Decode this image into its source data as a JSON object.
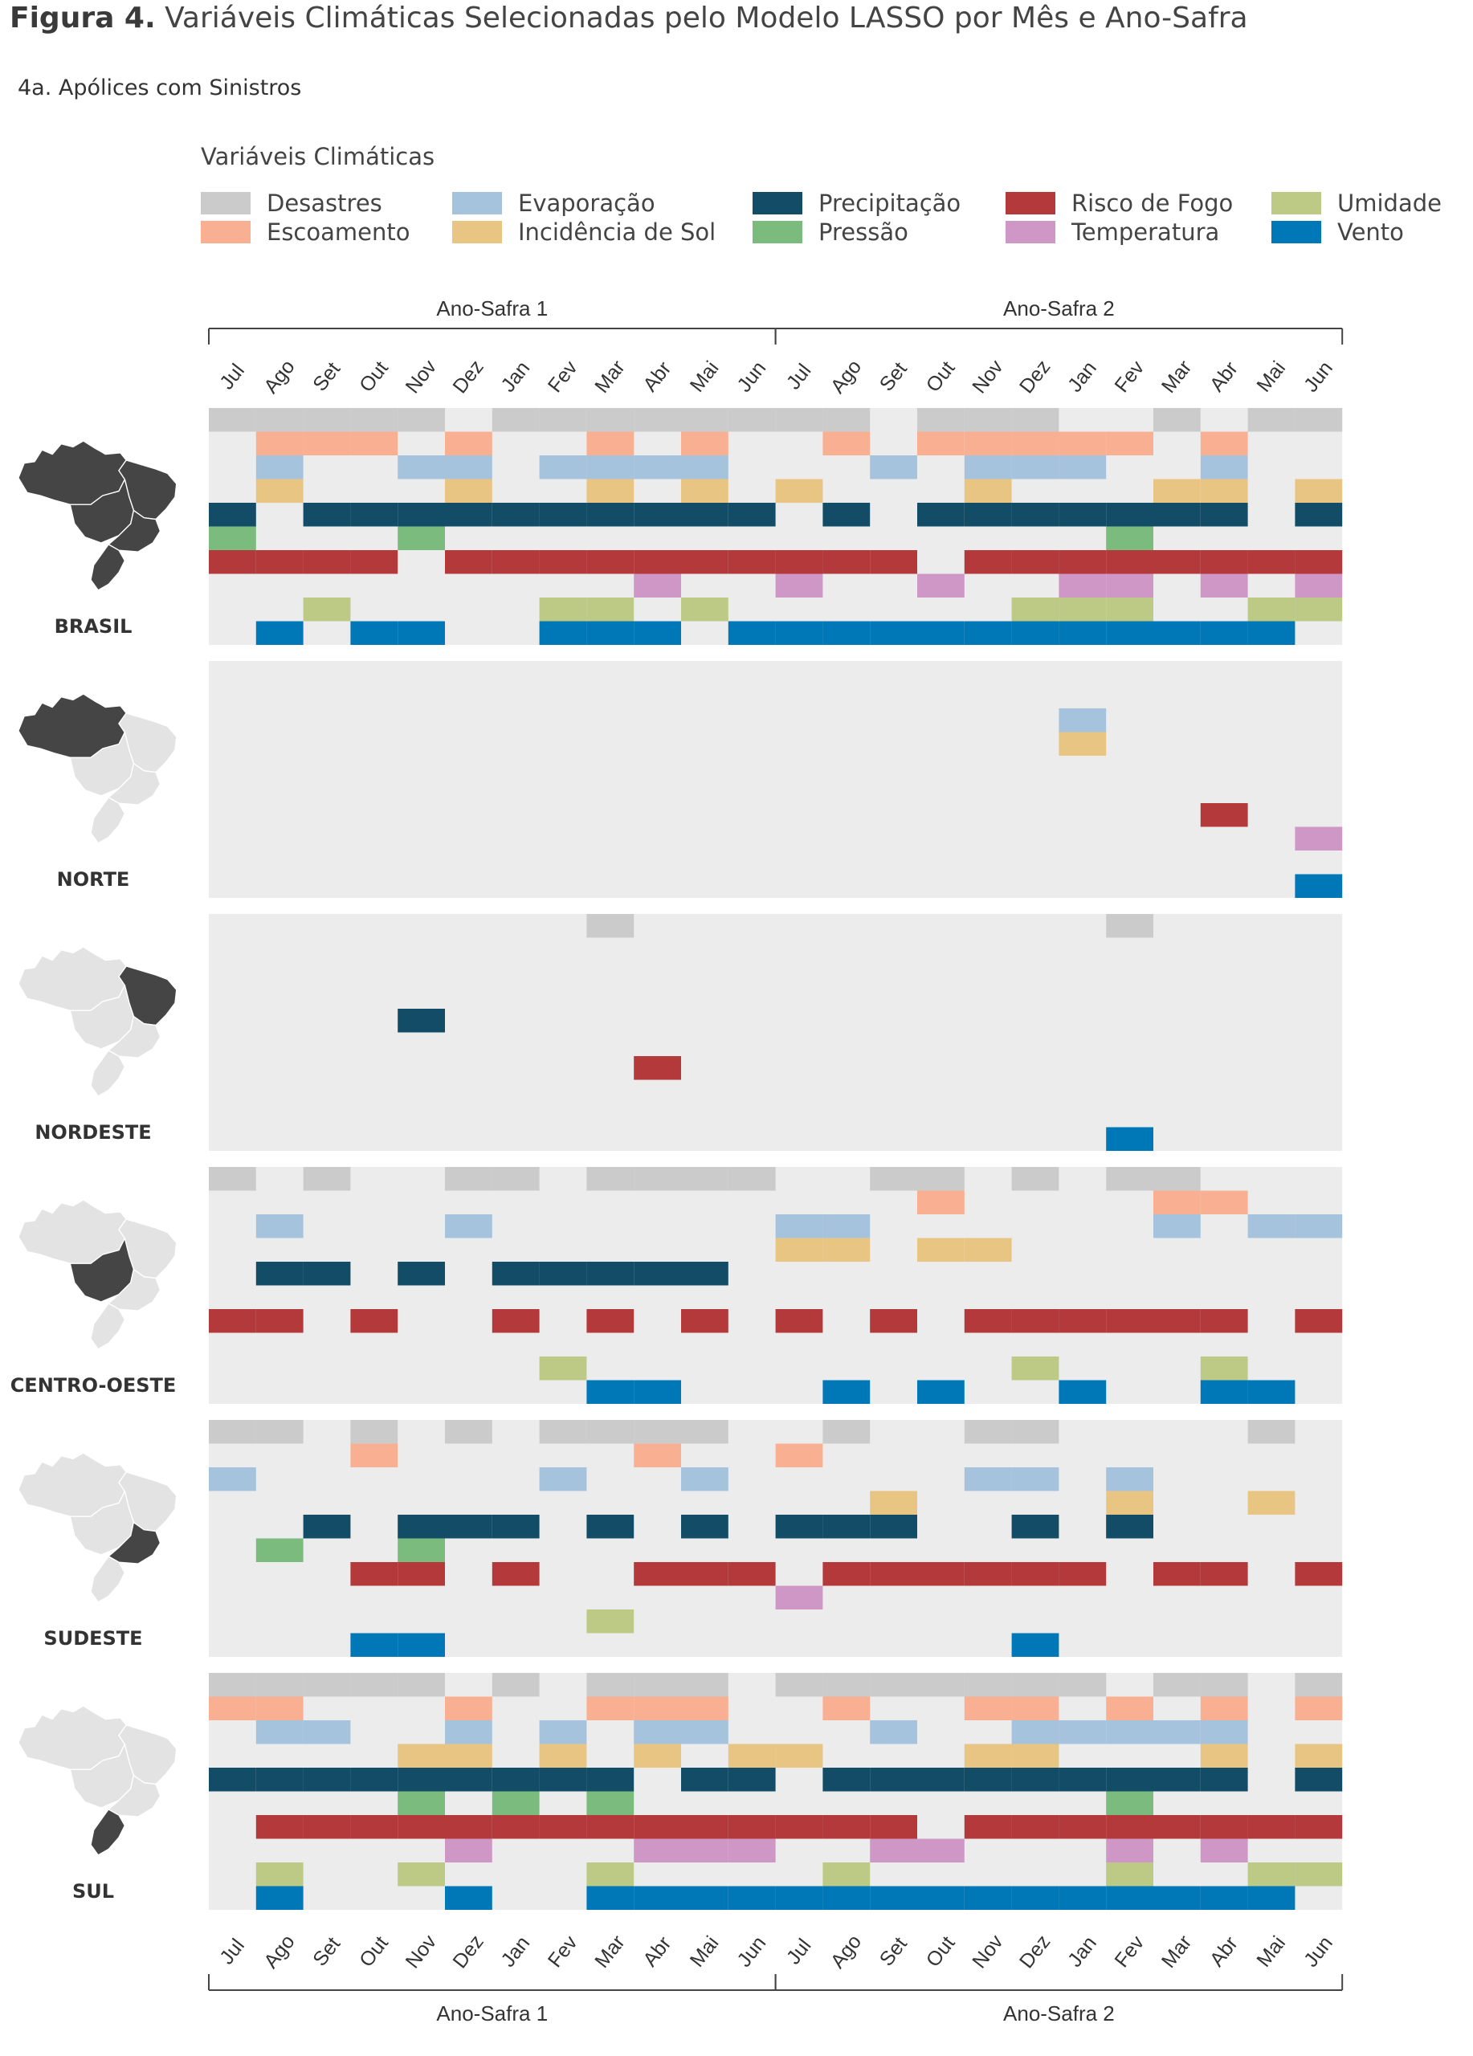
{
  "figure": {
    "title_bold": "Figura 4.",
    "title_rest": "Variáveis Climáticas Selecionadas pelo Modelo LASSO por Mês e Ano-Safra",
    "subtitle": "4a. Apólices com Sinistros"
  },
  "legend": {
    "title": "Variáveis Climáticas",
    "items": [
      {
        "label": "Desastres",
        "color": "#cbcbcb"
      },
      {
        "label": "Escoamento",
        "color": "#f9b092"
      },
      {
        "label": "Evaporação",
        "color": "#a6c3dd"
      },
      {
        "label": "Incidência de Sol",
        "color": "#e9c583"
      },
      {
        "label": "Precipitação",
        "color": "#124c66"
      },
      {
        "label": "Pressão",
        "color": "#7bbb7e"
      },
      {
        "label": "Risco de Fogo",
        "color": "#b3393a"
      },
      {
        "label": "Temperatura",
        "color": "#cf97c5"
      },
      {
        "label": "Umidade",
        "color": "#bdca85"
      },
      {
        "label": "Vento",
        "color": "#0077b6"
      }
    ]
  },
  "chart_data": {
    "type": "heatmap",
    "months": [
      "Jul",
      "Ago",
      "Set",
      "Out",
      "Nov",
      "Dez",
      "Jan",
      "Fev",
      "Mar",
      "Abr",
      "Mai",
      "Jun",
      "Jul",
      "Ago",
      "Set",
      "Out",
      "Nov",
      "Dez",
      "Jan",
      "Fev",
      "Mar",
      "Abr",
      "Mai",
      "Jun"
    ],
    "seasons": [
      {
        "label": "Ano-Safra 1",
        "start_month_index": 0,
        "end_month_index": 11
      },
      {
        "label": "Ano-Safra 2",
        "start_month_index": 12,
        "end_month_index": 23
      }
    ],
    "variables": [
      "Desastres",
      "Escoamento",
      "Evaporação",
      "Incidência de Sol",
      "Precipitação",
      "Pressão",
      "Risco de Fogo",
      "Temperatura",
      "Umidade",
      "Vento"
    ],
    "background_color": "#ececec",
    "regions": [
      {
        "name": "BRASIL",
        "selected": [
          [
            0,
            1,
            2,
            3,
            4,
            6,
            7,
            8,
            9,
            10,
            11,
            12,
            13,
            15,
            16,
            17,
            20,
            22,
            23
          ],
          [
            1,
            2,
            3,
            5,
            8,
            10,
            13,
            15,
            16,
            17,
            18,
            19,
            21
          ],
          [
            1,
            4,
            5,
            7,
            8,
            9,
            10,
            14,
            16,
            17,
            18,
            21
          ],
          [
            1,
            5,
            8,
            10,
            12,
            16,
            20,
            21,
            23
          ],
          [
            0,
            2,
            3,
            4,
            5,
            6,
            7,
            8,
            9,
            10,
            11,
            13,
            15,
            16,
            17,
            18,
            19,
            20,
            21,
            23
          ],
          [
            0,
            4,
            19
          ],
          [
            0,
            1,
            2,
            3,
            5,
            6,
            7,
            8,
            9,
            10,
            11,
            12,
            13,
            14,
            16,
            17,
            18,
            19,
            20,
            21,
            22,
            23
          ],
          [
            9,
            12,
            15,
            18,
            19,
            21,
            23
          ],
          [
            2,
            7,
            8,
            10,
            17,
            18,
            19,
            22,
            23
          ],
          [
            1,
            3,
            4,
            7,
            8,
            9,
            11,
            12,
            13,
            14,
            15,
            16,
            17,
            18,
            19,
            20,
            21,
            22
          ]
        ]
      },
      {
        "name": "NORTE",
        "selected": [
          [],
          [],
          [
            18
          ],
          [
            18
          ],
          [],
          [],
          [
            21
          ],
          [
            23
          ],
          [],
          [
            23
          ]
        ]
      },
      {
        "name": "NORDESTE",
        "selected": [
          [
            8,
            19
          ],
          [],
          [],
          [],
          [
            4
          ],
          [],
          [
            9
          ],
          [],
          [],
          [
            19
          ]
        ]
      },
      {
        "name": "CENTRO-OESTE",
        "selected": [
          [
            0,
            2,
            5,
            6,
            8,
            9,
            10,
            11,
            14,
            15,
            17,
            19,
            20
          ],
          [
            15,
            20,
            21
          ],
          [
            1,
            5,
            12,
            13,
            20,
            22,
            23
          ],
          [
            12,
            13,
            15,
            16
          ],
          [
            1,
            2,
            4,
            6,
            7,
            8,
            9,
            10
          ],
          [],
          [
            0,
            1,
            3,
            6,
            8,
            10,
            12,
            14,
            16,
            17,
            18,
            19,
            20,
            21,
            23
          ],
          [],
          [
            7,
            17,
            21
          ],
          [
            8,
            9,
            13,
            15,
            18,
            21,
            22
          ]
        ]
      },
      {
        "name": "SUDESTE",
        "selected": [
          [
            0,
            1,
            3,
            5,
            7,
            8,
            9,
            10,
            13,
            16,
            17,
            22
          ],
          [
            3,
            9,
            12
          ],
          [
            0,
            7,
            10,
            16,
            17,
            19
          ],
          [
            14,
            19,
            22
          ],
          [
            2,
            4,
            5,
            6,
            8,
            10,
            12,
            13,
            14,
            17,
            19
          ],
          [
            1,
            4
          ],
          [
            3,
            4,
            6,
            9,
            10,
            11,
            13,
            14,
            15,
            16,
            17,
            18,
            20,
            21,
            23
          ],
          [
            12
          ],
          [
            8
          ],
          [
            3,
            4,
            17
          ]
        ]
      },
      {
        "name": "SUL",
        "selected": [
          [
            0,
            1,
            2,
            3,
            4,
            6,
            8,
            9,
            10,
            12,
            13,
            14,
            15,
            16,
            17,
            18,
            20,
            21,
            23
          ],
          [
            0,
            1,
            5,
            8,
            9,
            10,
            13,
            16,
            17,
            19,
            21,
            23
          ],
          [
            1,
            2,
            5,
            7,
            9,
            10,
            14,
            17,
            18,
            19,
            20,
            21
          ],
          [
            4,
            5,
            7,
            9,
            11,
            12,
            16,
            17,
            21,
            23
          ],
          [
            0,
            1,
            2,
            3,
            4,
            5,
            6,
            7,
            8,
            10,
            11,
            13,
            14,
            15,
            16,
            17,
            18,
            19,
            20,
            21,
            23
          ],
          [
            4,
            6,
            8,
            19
          ],
          [
            1,
            2,
            3,
            4,
            5,
            6,
            7,
            8,
            9,
            10,
            11,
            12,
            13,
            14,
            16,
            17,
            18,
            19,
            20,
            21,
            22,
            23
          ],
          [
            5,
            9,
            10,
            11,
            14,
            15,
            19,
            21
          ],
          [
            1,
            4,
            8,
            13,
            19,
            22,
            23
          ],
          [
            1,
            5,
            8,
            9,
            10,
            11,
            12,
            13,
            14,
            15,
            16,
            17,
            18,
            19,
            20,
            21,
            22
          ]
        ]
      }
    ]
  }
}
